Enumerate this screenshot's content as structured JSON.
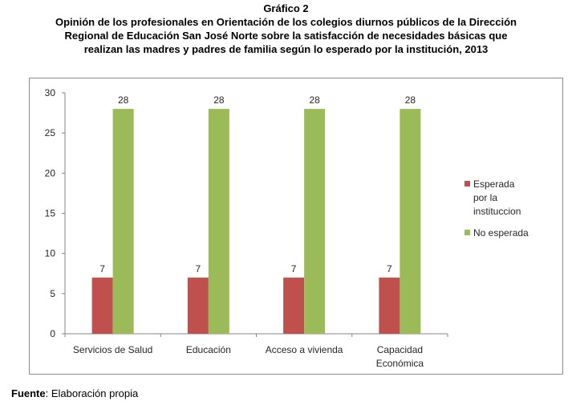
{
  "figure_label": "Gráfico 2",
  "title_lines": [
    "Opinión de los profesionales en Orientación de los colegios diurnos públicos de la Dirección",
    "Regional de Educación San José Norte  sobre la satisfacción de necesidades básicas que",
    "realizan las madres y padres de familia según lo esperado por la institución, 2013"
  ],
  "footer": {
    "label": "Fuente",
    "text": ": Elaboración propia"
  },
  "chart_data": {
    "type": "bar",
    "categories": [
      [
        "Servicios de Salud"
      ],
      [
        "Educación"
      ],
      [
        "Acceso a vivienda"
      ],
      [
        "Capacidad",
        "Económica"
      ]
    ],
    "series": [
      {
        "name": [
          "Esperada",
          "por la",
          "instituccion"
        ],
        "values": [
          7,
          7,
          7,
          7
        ],
        "color": "#c0504d"
      },
      {
        "name": [
          "No esperada"
        ],
        "values": [
          28,
          28,
          28,
          28
        ],
        "color": "#9bbb59"
      }
    ],
    "ylim": [
      0,
      30
    ],
    "yticks": [
      0,
      5,
      10,
      15,
      20,
      25,
      30
    ],
    "grid": false,
    "legend_position": "right",
    "data_labels": true,
    "colors": {
      "axis": "#868686",
      "text": "#262626"
    }
  }
}
